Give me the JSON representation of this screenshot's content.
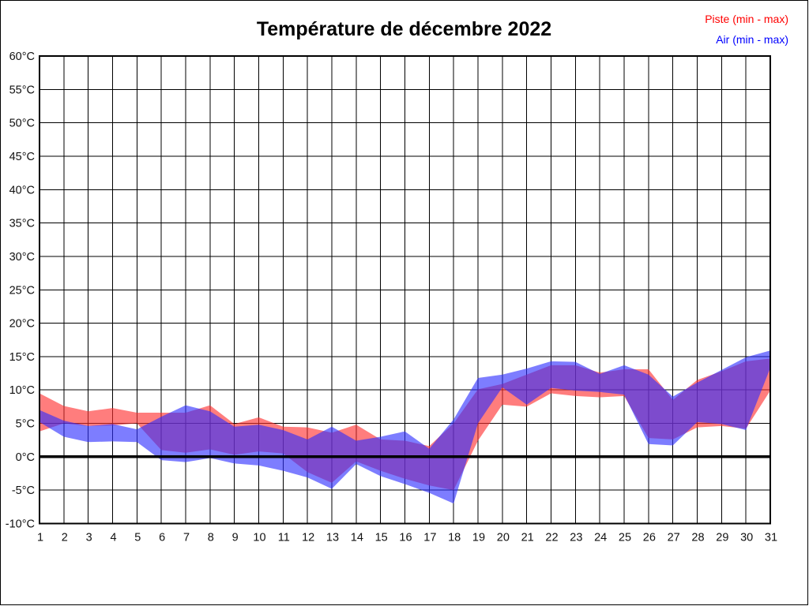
{
  "figure": {
    "title": "Température de décembre 2022",
    "legend": [
      {
        "id": "piste",
        "label": "Piste (min - max)",
        "color": "#ff0000"
      },
      {
        "id": "air",
        "label": "Air (min - max)",
        "color": "#0000ff"
      }
    ]
  },
  "chart_data": {
    "type": "area",
    "subtype": "min-max-daily-band",
    "title": "Température de décembre 2022",
    "xlabel": "",
    "ylabel": "",
    "unit": "°C",
    "grid": true,
    "legend_position": "top-right",
    "zero_line_bold": true,
    "ylim": [
      -10,
      60
    ],
    "y_tick_step": 5,
    "y_ticks": [
      60,
      55,
      50,
      45,
      40,
      35,
      30,
      25,
      20,
      15,
      10,
      5,
      0,
      -5,
      -10
    ],
    "y_tick_labels": [
      "60°C",
      "55°C",
      "50°C",
      "45°C",
      "40°C",
      "35°C",
      "30°C",
      "25°C",
      "20°C",
      "15°C",
      "10°C",
      "5°C",
      "0°C",
      "-5°C",
      "-10°C"
    ],
    "x": [
      1,
      2,
      3,
      4,
      5,
      6,
      7,
      8,
      9,
      10,
      11,
      12,
      13,
      14,
      15,
      16,
      17,
      18,
      19,
      20,
      21,
      22,
      23,
      24,
      25,
      26,
      27,
      28,
      29,
      30,
      31
    ],
    "x_tick_labels": [
      "1",
      "2",
      "3",
      "4",
      "5",
      "6",
      "7",
      "8",
      "9",
      "10",
      "11",
      "12",
      "13",
      "14",
      "15",
      "16",
      "17",
      "18",
      "19",
      "20",
      "21",
      "22",
      "23",
      "24",
      "25",
      "26",
      "27",
      "28",
      "29",
      "30",
      "31"
    ],
    "series": [
      {
        "name": "Piste (min - max)",
        "legend_color": "#ff0000",
        "fill_rgb": [
          255,
          45,
          45
        ],
        "fill_opacity": 0.62,
        "min": [
          3.8,
          5.0,
          4.6,
          4.7,
          5.0,
          1.0,
          0.6,
          1.1,
          0.3,
          0.8,
          0.5,
          -2.3,
          -3.9,
          -0.7,
          -2.1,
          -3.3,
          -4.3,
          -5.0,
          2.4,
          7.8,
          7.5,
          9.5,
          9.1,
          8.9,
          9.1,
          2.8,
          2.6,
          4.4,
          4.6,
          4.2,
          9.9
        ],
        "max": [
          9.5,
          7.6,
          6.8,
          7.3,
          6.6,
          6.6,
          6.6,
          7.7,
          4.9,
          5.9,
          4.5,
          4.4,
          3.6,
          4.8,
          2.6,
          2.4,
          1.6,
          5.0,
          10.1,
          10.9,
          12.3,
          13.7,
          13.7,
          12.6,
          13.1,
          13.1,
          8.5,
          11.5,
          12.8,
          14.3,
          14.7
        ]
      },
      {
        "name": "Air (min - max)",
        "legend_color": "#0000ff",
        "fill_rgb": [
          45,
          45,
          255
        ],
        "fill_opacity": 0.62,
        "min": [
          5.2,
          3.0,
          2.2,
          2.3,
          2.2,
          -0.5,
          -0.8,
          -0.2,
          -1.0,
          -1.3,
          -2.1,
          -3.1,
          -4.8,
          -1.1,
          -2.9,
          -4.1,
          -5.4,
          -7.0,
          5.0,
          10.4,
          7.8,
          10.3,
          9.9,
          9.7,
          9.3,
          1.9,
          1.7,
          5.2,
          4.9,
          4.0,
          13.3
        ],
        "max": [
          7.0,
          5.4,
          4.6,
          4.9,
          4.1,
          6.0,
          7.7,
          6.8,
          4.5,
          4.8,
          4.0,
          2.6,
          4.5,
          2.4,
          3.0,
          3.8,
          1.2,
          5.6,
          11.8,
          12.3,
          13.2,
          14.3,
          14.2,
          12.4,
          13.7,
          12.3,
          9.0,
          11.1,
          13.0,
          14.9,
          15.9
        ]
      }
    ]
  },
  "layout_note": "temperature band chart, december 2022, days 1-31"
}
